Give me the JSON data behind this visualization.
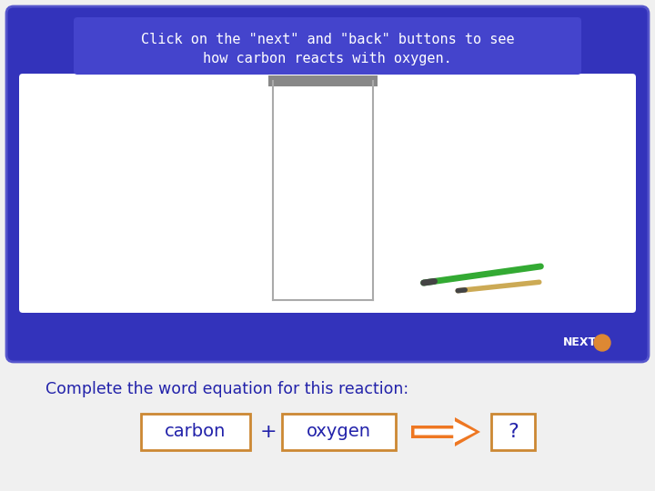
{
  "bg_color": "#f0f0f0",
  "panel_bg": "#3333bb",
  "panel_border": "#5555cc",
  "panel_inner_bg": "#ffffff",
  "header_bg": "#4444cc",
  "header_text_line1": "Click on the \"next\" and \"back\" buttons to see",
  "header_text_line2": "how carbon reacts with oxygen.",
  "header_text_color": "#ffffff",
  "next_text": "NEXT",
  "next_text_color": "#ffffff",
  "next_circle_color": "#dd8833",
  "bottom_text": "Complete the word equation for this reaction:",
  "bottom_text_color": "#2222aa",
  "box_border_color": "#cc8833",
  "box_text_color": "#2222aa",
  "plus_color": "#2222aa",
  "arrow_fill": "#ee7722",
  "arrow_outline": "#ee7722",
  "question_color": "#2222aa",
  "word1": "carbon",
  "word2": "oxygen",
  "question_mark": "?",
  "cap_color": "#888888",
  "tube_color": "#aaaaaa",
  "green_stick_color": "#33aa33",
  "yellow_stick_color": "#ccaa55",
  "dark_tip_color": "#444444"
}
